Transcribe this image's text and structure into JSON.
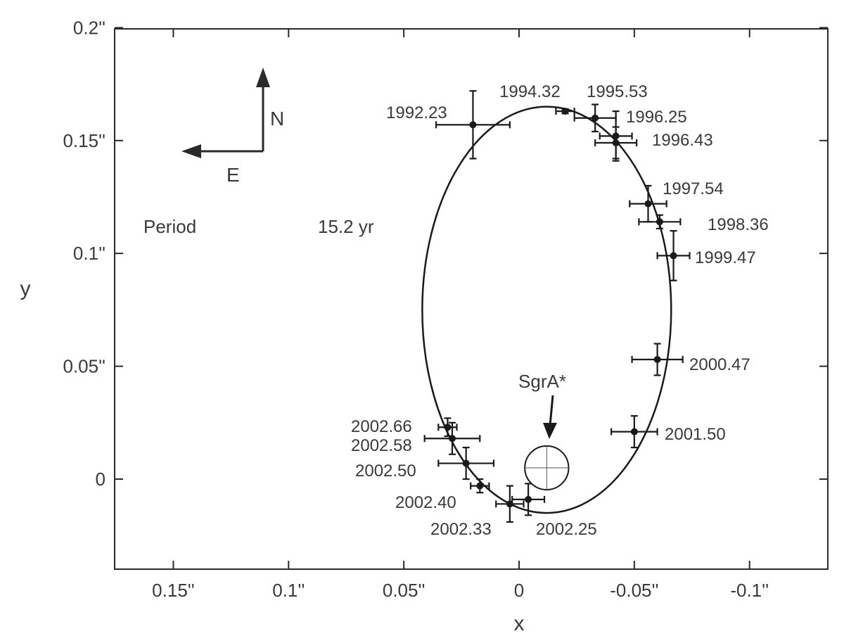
{
  "chart_data": {
    "type": "scatter",
    "title": "",
    "xlabel": "x",
    "ylabel": "y",
    "xlim": [
      0.18,
      -0.14
    ],
    "ylim": [
      -0.04,
      0.2
    ],
    "x_ticks": [
      {
        "v": 0.15,
        "label": "0.15''"
      },
      {
        "v": 0.1,
        "label": "0.1''"
      },
      {
        "v": 0.05,
        "label": "0.05''"
      },
      {
        "v": 0,
        "label": "0"
      },
      {
        "v": -0.05,
        "label": "-0.05''"
      },
      {
        "v": -0.1,
        "label": "-0.1''"
      }
    ],
    "y_ticks": [
      {
        "v": 0.2,
        "label": "0.2''"
      },
      {
        "v": 0.15,
        "label": "0.15''"
      },
      {
        "v": 0.1,
        "label": "0.1''"
      },
      {
        "v": 0.05,
        "label": "0.05''"
      },
      {
        "v": 0,
        "label": "0"
      }
    ],
    "period_label": "Period",
    "period_value": "15.2 yr",
    "compass": {
      "north": "N",
      "east": "E"
    },
    "sgra": {
      "label": "SgrA*",
      "x": -0.012,
      "y": 0.005,
      "r": 0.0095
    },
    "orbit_ellipse": {
      "cx": -0.012,
      "cy": 0.075,
      "rx": 0.054,
      "ry": 0.09
    },
    "points": [
      {
        "epoch": "1992.23",
        "x": 0.02,
        "y": 0.157,
        "xerr": 0.016,
        "yerr": 0.015
      },
      {
        "epoch": "1994.32",
        "x": -0.02,
        "y": 0.163,
        "xerr": 0.004,
        "yerr": 0.001
      },
      {
        "epoch": "1995.53",
        "x": -0.033,
        "y": 0.16,
        "xerr": 0.009,
        "yerr": 0.006
      },
      {
        "epoch": "1996.25",
        "x": -0.042,
        "y": 0.152,
        "xerr": 0.007,
        "yerr": 0.011
      },
      {
        "epoch": "1996.43",
        "x": -0.042,
        "y": 0.149,
        "xerr": 0.009,
        "yerr": 0.007
      },
      {
        "epoch": "1997.54",
        "x": -0.056,
        "y": 0.122,
        "xerr": 0.008,
        "yerr": 0.008
      },
      {
        "epoch": "1998.36",
        "x": -0.061,
        "y": 0.114,
        "xerr": 0.009,
        "yerr": 0.003
      },
      {
        "epoch": "1999.47",
        "x": -0.067,
        "y": 0.099,
        "xerr": 0.007,
        "yerr": 0.011
      },
      {
        "epoch": "2000.47",
        "x": -0.06,
        "y": 0.053,
        "xerr": 0.011,
        "yerr": 0.007
      },
      {
        "epoch": "2001.50",
        "x": -0.05,
        "y": 0.021,
        "xerr": 0.01,
        "yerr": 0.007
      },
      {
        "epoch": "2002.25",
        "x": -0.004,
        "y": -0.009,
        "xerr": 0.007,
        "yerr": 0.007
      },
      {
        "epoch": "2002.33",
        "x": 0.004,
        "y": -0.011,
        "xerr": 0.006,
        "yerr": 0.008
      },
      {
        "epoch": "2002.40",
        "x": 0.017,
        "y": -0.003,
        "xerr": 0.004,
        "yerr": 0.003
      },
      {
        "epoch": "2002.50",
        "x": 0.023,
        "y": 0.007,
        "xerr": 0.012,
        "yerr": 0.007
      },
      {
        "epoch": "2002.58",
        "x": 0.029,
        "y": 0.018,
        "xerr": 0.012,
        "yerr": 0.007
      },
      {
        "epoch": "2002.66",
        "x": 0.031,
        "y": 0.023,
        "xerr": 0.004,
        "yerr": 0.004
      }
    ]
  }
}
